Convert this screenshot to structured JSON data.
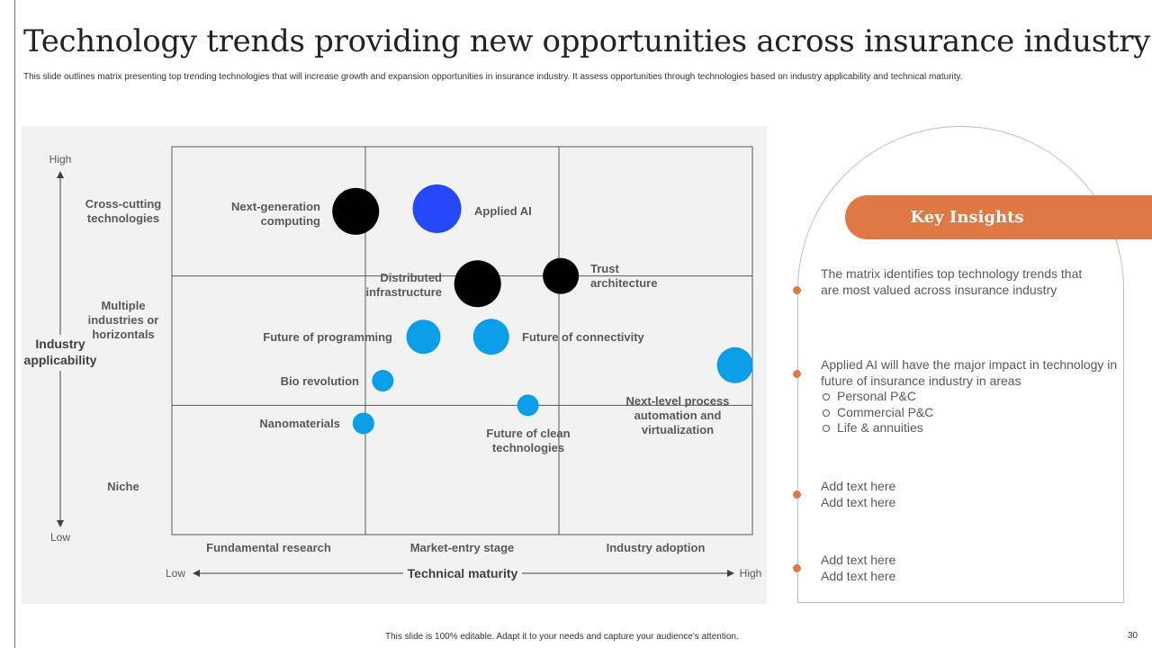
{
  "title": "Technology trends providing new opportunities across insurance industry",
  "subtitle": "This slide outlines matrix presenting top trending technologies that will increase growth and expansion opportunities in insurance industry. It assess opportunities through technologies based on industry applicability and technical maturity.",
  "chart_data": {
    "type": "scatter",
    "title": "",
    "xlabel": "Technical maturity",
    "ylabel": "Industry applicability",
    "x_low": "Low",
    "x_high": "High",
    "y_low": "Low",
    "y_high": "High",
    "x_categories": [
      "Fundamental research",
      "Market-entry stage",
      "Industry  adoption"
    ],
    "y_categories": [
      "Niche",
      "Multiple industries or horizontals",
      "Cross-cutting technologies"
    ],
    "xlim": [
      0,
      3
    ],
    "ylim": [
      0,
      3
    ],
    "points": [
      {
        "label": "Next-generation computing",
        "x": 0.95,
        "y": 2.5,
        "size": 26,
        "color": "#000000"
      },
      {
        "label": "Applied AI",
        "x": 1.37,
        "y": 2.52,
        "size": 27,
        "color": "#2448f5"
      },
      {
        "label": "Distributed infrastructure",
        "x": 1.58,
        "y": 1.94,
        "size": 26,
        "color": "#000000"
      },
      {
        "label": "Trust architecture",
        "x": 2.01,
        "y": 2.0,
        "size": 20,
        "color": "#000000"
      },
      {
        "label": "Future of programming",
        "x": 1.3,
        "y": 1.53,
        "size": 19,
        "color": "#0a9ee8"
      },
      {
        "label": "Future of  connectivity",
        "x": 1.65,
        "y": 1.53,
        "size": 20,
        "color": "#0a9ee8"
      },
      {
        "label": "Next-level process automation and virtualization",
        "x": 2.91,
        "y": 1.31,
        "size": 20,
        "color": "#0a9ee8"
      },
      {
        "label": "Bio revolution",
        "x": 1.09,
        "y": 1.19,
        "size": 12,
        "color": "#0a9ee8"
      },
      {
        "label": "Future of clean technologies",
        "x": 1.84,
        "y": 1.0,
        "size": 12,
        "color": "#0a9ee8"
      },
      {
        "label": "Nanomaterials",
        "x": 0.99,
        "y": 0.86,
        "size": 12,
        "color": "#0a9ee8"
      }
    ]
  },
  "insights": {
    "header": "Key Insights",
    "items": [
      {
        "text": "The matrix identifies top technology trends that are most valued across insurance industry"
      },
      {
        "text": "Applied AI will have the major impact in technology in future of insurance industry in areas",
        "bullets": [
          "Personal P&C",
          "Commercial P&C",
          "Life & annuities"
        ]
      },
      {
        "lines": [
          "Add text here",
          "Add text here"
        ]
      },
      {
        "lines": [
          "Add text here",
          "Add text here"
        ]
      }
    ]
  },
  "footer": "This slide is 100% editable. Adapt it to your needs and capture your audience's attention.",
  "page_number": "30",
  "colors": {
    "accent": "#e07845",
    "panel": "#f2f2f2",
    "black_bubble": "#000000",
    "blue_bubble": "#2448f5",
    "light_blue_bubble": "#0a9ee8"
  }
}
